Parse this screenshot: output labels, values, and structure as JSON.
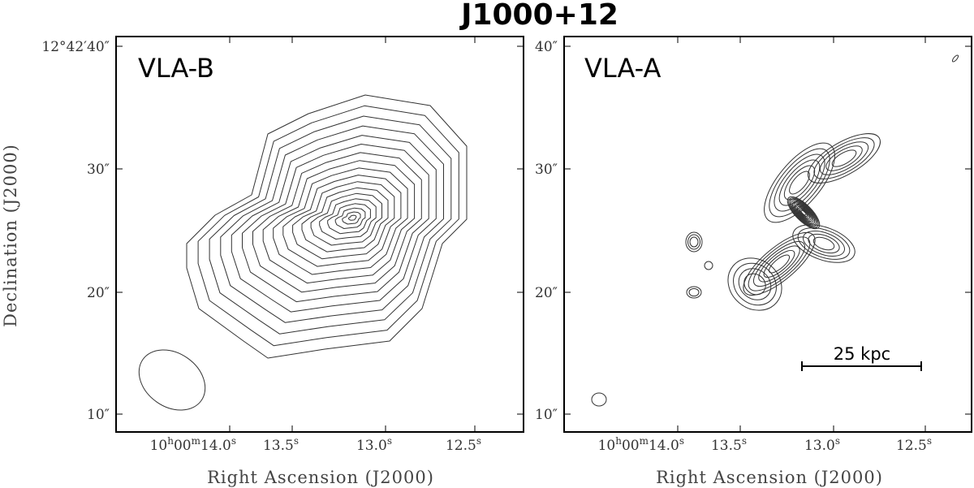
{
  "title": "J1000+12",
  "panels": [
    {
      "label": "VLA-B",
      "yticks": [
        "12°42′40″",
        "30″",
        "20″",
        "10″"
      ],
      "xticks": [
        [
          "10",
          "h",
          "00",
          "m",
          "14.0",
          "s"
        ],
        [
          "13.5",
          "s"
        ],
        [
          "13.0",
          "s"
        ],
        [
          "12.5",
          "s"
        ]
      ],
      "xlabel": "Right Ascension (J2000)",
      "ylabel": "Declination (J2000)"
    },
    {
      "label": "VLA-A",
      "yticks": [
        "40″",
        "30″",
        "20″",
        "10″"
      ],
      "xticks": [
        [
          "10",
          "h",
          "00",
          "m",
          "14.0",
          "s"
        ],
        [
          "13.5",
          "s"
        ],
        [
          "13.0",
          "s"
        ],
        [
          "12.5",
          "s"
        ]
      ],
      "xlabel": "Right Ascension (J2000)",
      "scalebar": "25 kpc"
    }
  ]
}
